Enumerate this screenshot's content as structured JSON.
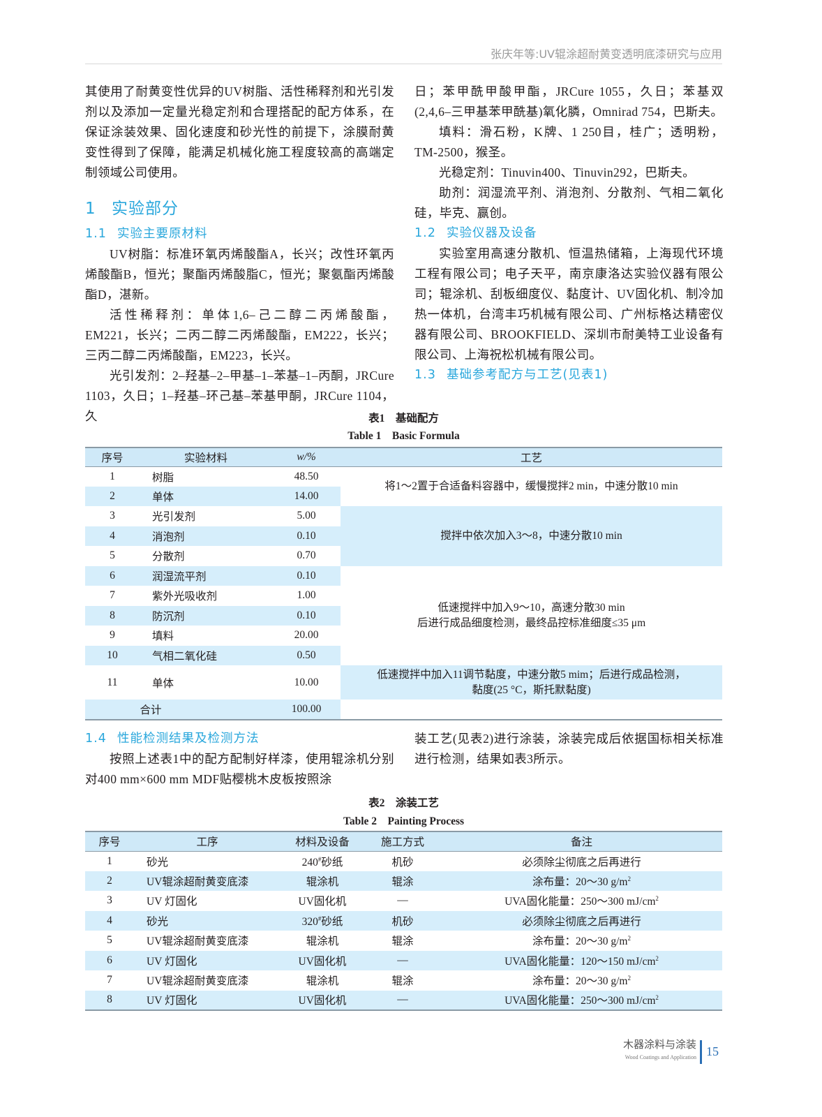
{
  "header": {
    "running_title": "张庆年等:UV辊涂超耐黄变透明底漆研究与应用"
  },
  "left_column": {
    "intro": "其使用了耐黄变性优异的UV树脂、活性稀释剂和光引发剂以及添加一定量光稳定剂和合理搭配的配方体系，在保证涂装效果、固化速度和砂光性的前提下，涂膜耐黄变性得到了保障，能满足机械化施工程度较高的高端定制领域公司使用。",
    "section1": {
      "num": "1",
      "title": "实验部分"
    },
    "section1_1": {
      "num": "1.1",
      "title": "实验主要原材料"
    },
    "p_resin": "UV树脂：标准环氧丙烯酸酯A，长兴；改性环氧丙烯酸酯B，恒光；聚酯丙烯酸脂C，恒光；聚氨酯丙烯酸酯D，湛新。",
    "p_diluent": "活性稀释剂：单体1,6–己二醇二丙烯酸酯，EM221，长兴；二丙二醇二丙烯酸酯，EM222，长兴；三丙二醇二丙烯酸酯，EM223，长兴。",
    "p_initiator": "光引发剂：2–羟基–2–甲基–1–苯基–1–丙酮，JRCure 1103，久日；1–羟基–环己基–苯基甲酮，JRCure 1104，久"
  },
  "right_column": {
    "p_initiator_cont": "日；苯甲酰甲酸甲酯，JRCure 1055，久日；苯基双(2,4,6–三甲基苯甲酰基)氧化膦，Omnirad 754，巴斯夫。",
    "p_filler": "填料：滑石粉，K牌、1 250目，桂广；透明粉，TM-2500，猴圣。",
    "p_stabilizer": "光稳定剂：Tinuvin400、Tinuvin292，巴斯夫。",
    "p_additive": "助剂：润湿流平剂、消泡剂、分散剂、气相二氧化硅，毕克、赢创。",
    "section1_2": {
      "num": "1.2",
      "title": "实验仪器及设备"
    },
    "p_equipment": "实验室用高速分散机、恒温热储箱，上海现代环境工程有限公司；电子天平，南京康洛达实验仪器有限公司；辊涂机、刮板细度仪、黏度计、UV固化机、制冷加热一体机，台湾丰巧机械有限公司、广州标格达精密仪器有限公司、BROOKFIELD、深圳市耐美特工业设备有限公司、上海祝松机械有限公司。",
    "section1_3": {
      "num": "1.3",
      "title": "基础参考配方与工艺(见表1)"
    }
  },
  "table1": {
    "caption_cn": "表1　基础配方",
    "caption_en": "Table 1　Basic Formula",
    "headers": [
      "序号",
      "实验材料",
      "w/%",
      "工艺"
    ],
    "rows": [
      [
        "1",
        "树脂",
        "48.50"
      ],
      [
        "2",
        "单体",
        "14.00"
      ],
      [
        "3",
        "光引发剂",
        "5.00"
      ],
      [
        "4",
        "消泡剂",
        "0.10"
      ],
      [
        "5",
        "分散剂",
        "0.70"
      ],
      [
        "6",
        "润湿流平剂",
        "0.10"
      ],
      [
        "7",
        "紫外光吸收剂",
        "1.00"
      ],
      [
        "8",
        "防沉剂",
        "0.10"
      ],
      [
        "9",
        "填料",
        "20.00"
      ],
      [
        "10",
        "气相二氧化硅",
        "0.50"
      ],
      [
        "11",
        "单体",
        "10.00"
      ]
    ],
    "process": [
      {
        "rows": "1-2",
        "text": "将1～2置于合适备料容器中，缓慢搅拌2 min，中速分散10 min"
      },
      {
        "rows": "3-5",
        "text": "搅拌中依次加入3～8，中速分散10 min"
      },
      {
        "rows": "6-10",
        "text": "低速搅拌中加入9～10，高速分散30 min\n后进行成品细度检测，最终品控标准细度≤35 μm"
      },
      {
        "rows": "11",
        "text": "低速搅拌中加入11调节黏度，中速分散5 mim；后进行成品检测，\n黏度(25 °C，斯托默黏度)"
      }
    ],
    "total": {
      "label": "合计",
      "value": "100.00"
    }
  },
  "section1_4": {
    "num": "1.4",
    "title": "性能检测结果及检测方法",
    "p_left": "按照上述表1中的配方配制好样漆，使用辊涂机分别对400 mm×600 mm MDF贴樱桃木皮板按照涂",
    "p_right": "装工艺(见表2)进行涂装，涂装完成后依据国标相关标准进行检测，结果如表3所示。"
  },
  "table2": {
    "caption_cn": "表2　涂装工艺",
    "caption_en": "Table 2　Painting Process",
    "headers": [
      "序号",
      "工序",
      "材料及设备",
      "施工方式",
      "备注"
    ],
    "rows": [
      [
        "1",
        "砂光",
        {
          "t": "240",
          "sup": "#",
          "post": "砂纸"
        },
        "机砂",
        "必须除尘彻底之后再进行"
      ],
      [
        "2",
        "UV辊涂超耐黄变底漆",
        "辊涂机",
        "辊涂",
        {
          "t": "涂布量：20～30 g/m",
          "sup": "2"
        }
      ],
      [
        "3",
        "UV 灯固化",
        "UV固化机",
        "—",
        {
          "t": "UVA固化能量：250～300 mJ/cm",
          "sup": "2"
        }
      ],
      [
        "4",
        "砂光",
        {
          "t": "320",
          "sup": "#",
          "post": "砂纸"
        },
        "机砂",
        "必须除尘彻底之后再进行"
      ],
      [
        "5",
        "UV辊涂超耐黄变底漆",
        "辊涂机",
        "辊涂",
        {
          "t": "涂布量：20～30 g/m",
          "sup": "2"
        }
      ],
      [
        "6",
        "UV 灯固化",
        "UV固化机",
        "—",
        {
          "t": "UVA固化能量：120～150 mJ/cm",
          "sup": "2"
        }
      ],
      [
        "7",
        "UV辊涂超耐黄变底漆",
        "辊涂机",
        "辊涂",
        {
          "t": "涂布量：20～30 g/m",
          "sup": "2"
        }
      ],
      [
        "8",
        "UV 灯固化",
        "UV固化机",
        "—",
        {
          "t": "UVA固化能量：250～300 mJ/cm",
          "sup": "2"
        }
      ]
    ]
  },
  "footer": {
    "journal_cn": "木器涂料与涂装",
    "journal_en": "Wood Coatings and Application",
    "page": "15"
  },
  "colors": {
    "heading": "#2aa7dc",
    "table_shade": "#d6eefb",
    "page_number": "#2a6fb5"
  }
}
